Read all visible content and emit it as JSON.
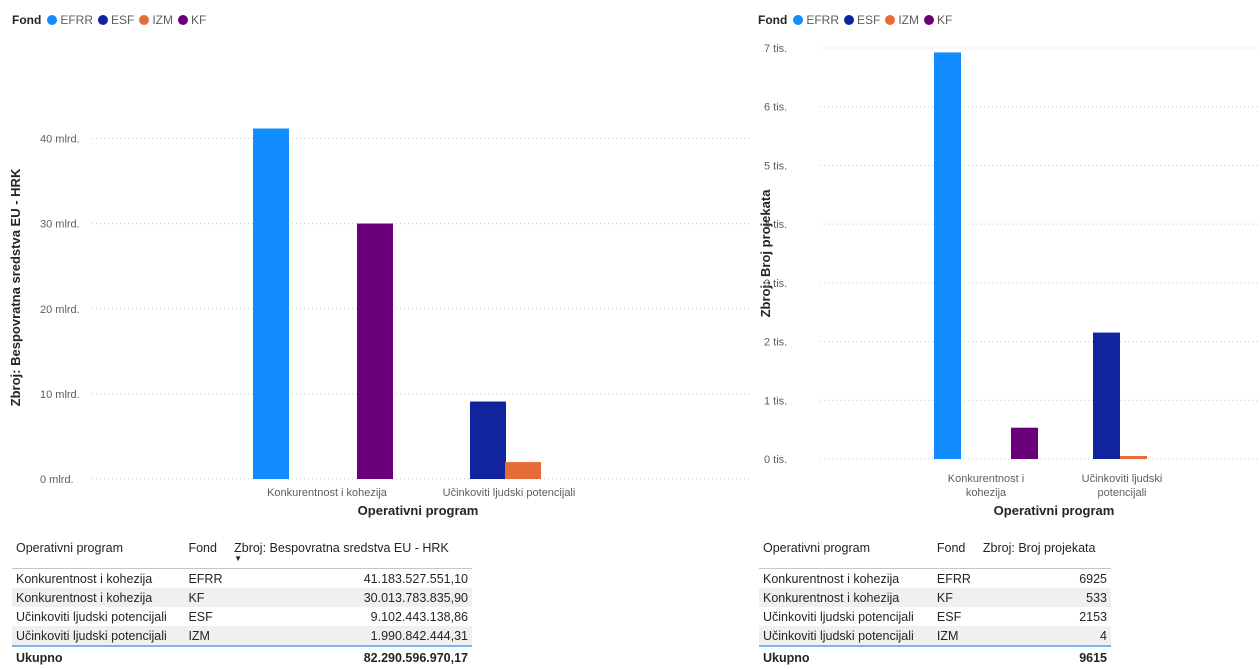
{
  "legend": {
    "title": "Fond",
    "items": [
      {
        "label": "EFRR",
        "color": "#118DFF"
      },
      {
        "label": "ESF",
        "color": "#12239E"
      },
      {
        "label": "IZM",
        "color": "#E66C37"
      },
      {
        "label": "KF",
        "color": "#6B007B"
      }
    ]
  },
  "chart_data": [
    {
      "type": "bar",
      "xlabel": "Operativni program",
      "ylabel": "Zbroj: Bespovratna sredstva EU - HRK",
      "ylim": [
        0,
        45000000000
      ],
      "y_ticks": [
        {
          "value": 0,
          "label": "0 mlrd."
        },
        {
          "value": 10000000000,
          "label": "10 mlrd."
        },
        {
          "value": 20000000000,
          "label": "20 mlrd."
        },
        {
          "value": 30000000000,
          "label": "30 mlrd."
        },
        {
          "value": 40000000000,
          "label": "40 mlrd."
        }
      ],
      "grid": true,
      "legend_position": "top-left",
      "categories": [
        {
          "label": "Konkurentnost i kohezija",
          "lines": [
            "Konkurentnost i kohezija"
          ]
        },
        {
          "label": "Učinkoviti ljudski potencijali",
          "lines": [
            "Učinkoviti ljudski potencijali"
          ]
        }
      ],
      "series": [
        {
          "name": "EFRR",
          "color": "#118DFF",
          "values": [
            41183527551.1,
            null
          ]
        },
        {
          "name": "ESF",
          "color": "#12239E",
          "values": [
            null,
            9102443138.86
          ]
        },
        {
          "name": "IZM",
          "color": "#E66C37",
          "values": [
            null,
            1990842444.31
          ]
        },
        {
          "name": "KF",
          "color": "#6B007B",
          "values": [
            30013783835.9,
            null
          ]
        }
      ]
    },
    {
      "type": "bar",
      "xlabel": "Operativni program",
      "ylabel": "Zbroj: Broj projekata",
      "ylim": [
        0,
        7000
      ],
      "y_ticks": [
        {
          "value": 0,
          "label": "0 tis."
        },
        {
          "value": 1000,
          "label": "1 tis."
        },
        {
          "value": 2000,
          "label": "2 tis."
        },
        {
          "value": 3000,
          "label": "3 tis."
        },
        {
          "value": 4000,
          "label": "4 tis."
        },
        {
          "value": 5000,
          "label": "5 tis."
        },
        {
          "value": 6000,
          "label": "6 tis."
        },
        {
          "value": 7000,
          "label": "7 tis."
        }
      ],
      "grid": true,
      "legend_position": "top-left",
      "categories": [
        {
          "label": "Konkurentnost i kohezija",
          "lines": [
            "Konkurentnost i",
            "kohezija"
          ]
        },
        {
          "label": "Učinkoviti ljudski potencijali",
          "lines": [
            "Učinkoviti ljudski",
            "potencijali"
          ]
        }
      ],
      "series": [
        {
          "name": "EFRR",
          "color": "#118DFF",
          "values": [
            6925,
            null
          ]
        },
        {
          "name": "ESF",
          "color": "#12239E",
          "values": [
            null,
            2153
          ]
        },
        {
          "name": "IZM",
          "color": "#E66C37",
          "values": [
            null,
            4
          ]
        },
        {
          "name": "KF",
          "color": "#6B007B",
          "values": [
            533,
            null
          ]
        }
      ]
    }
  ],
  "left_table": {
    "headers": [
      "Operativni program",
      "Fond",
      "Zbroj: Bespovratna sredstva EU - HRK"
    ],
    "sort_indicator": "▼",
    "rows": [
      [
        "Konkurentnost i kohezija",
        "EFRR",
        "41.183.527.551,10"
      ],
      [
        "Konkurentnost i kohezija",
        "KF",
        "30.013.783.835,90"
      ],
      [
        "Učinkoviti ljudski potencijali",
        "ESF",
        "9.102.443.138,86"
      ],
      [
        "Učinkoviti ljudski potencijali",
        "IZM",
        "1.990.842.444,31"
      ]
    ],
    "total": [
      "Ukupno",
      "",
      "82.290.596.970,17"
    ]
  },
  "right_table": {
    "headers": [
      "Operativni program",
      "Fond",
      "Zbroj: Broj projekata"
    ],
    "rows": [
      [
        "Konkurentnost i kohezija",
        "EFRR",
        "6925"
      ],
      [
        "Konkurentnost i kohezija",
        "KF",
        "533"
      ],
      [
        "Učinkoviti ljudski potencijali",
        "ESF",
        "2153"
      ],
      [
        "Učinkoviti ljudski potencijali",
        "IZM",
        "4"
      ]
    ],
    "total": [
      "Ukupno",
      "",
      "9615"
    ]
  }
}
